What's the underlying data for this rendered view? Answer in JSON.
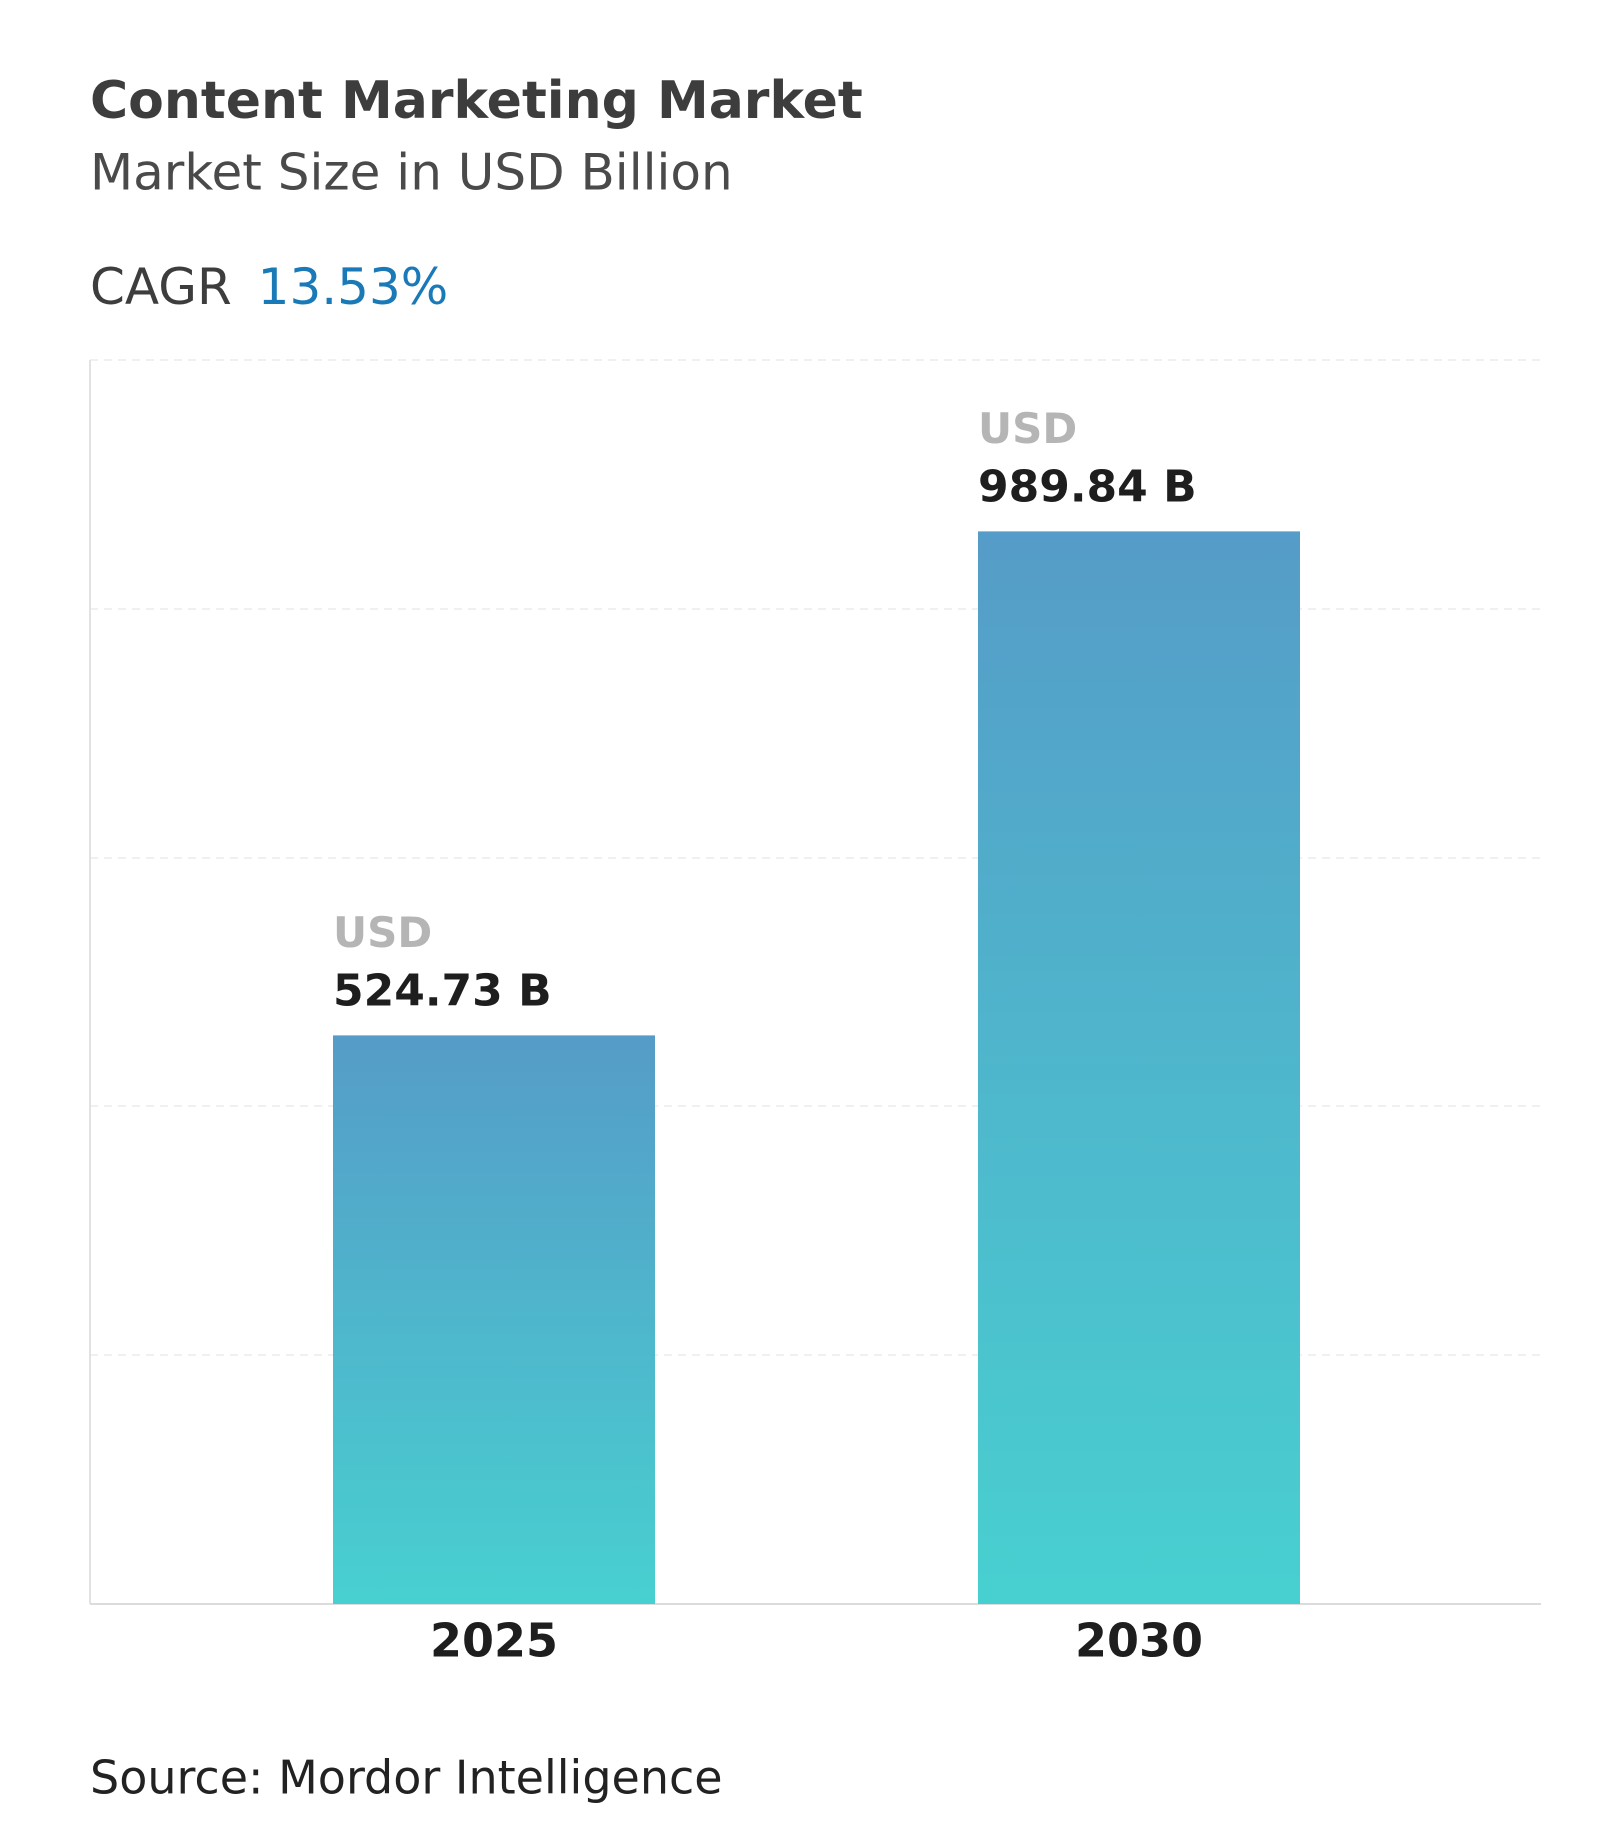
{
  "chart_data": {
    "type": "bar",
    "title": "Content Marketing Market",
    "subtitle": "Market Size in USD Billion",
    "cagr_label": "CAGR",
    "cagr": "13.53%",
    "categories": [
      "2025",
      "2030"
    ],
    "values": [
      524.73,
      989.84
    ],
    "value_labels": [
      "524.73 B",
      "989.84 B"
    ],
    "value_label_prefix": "USD",
    "colors": [
      "#559cc8",
      "#48d0d0"
    ],
    "ylim": [
      0,
      1148
    ],
    "source": "Source: Mordor Intelligence"
  }
}
